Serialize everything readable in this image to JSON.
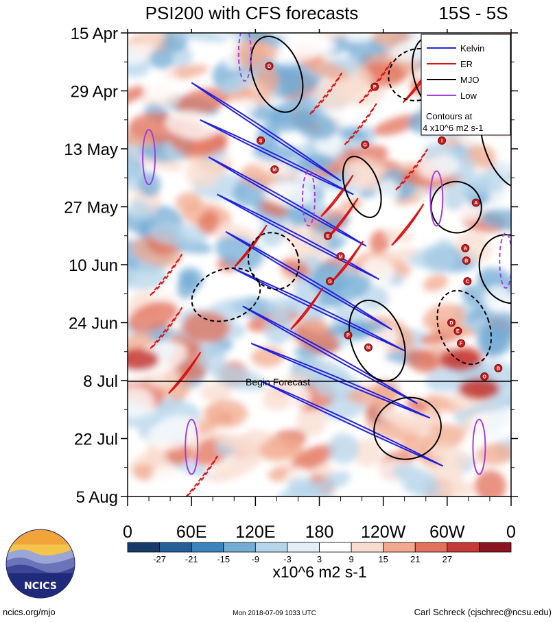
{
  "chart_data": {
    "type": "heatmap",
    "title": "PSI200 with CFS forecasts",
    "region": "15S - 5S",
    "y_tick_labels": [
      "15 Apr",
      "29 Apr",
      "13 May",
      "27 May",
      "10 Jun",
      "24 Jun",
      "8 Jul",
      "22 Jul",
      "5 Aug"
    ],
    "x_tick_labels": [
      "0",
      "60E",
      "120E",
      "180",
      "120W",
      "60W",
      "0"
    ],
    "xlim": [
      0,
      360
    ],
    "y_range": [
      "15 Apr",
      "5 Aug"
    ],
    "forecast_start": "8 Jul",
    "forecast_label": "Begin Forecast",
    "colorbar": {
      "levels": [
        "-27",
        "-21",
        "-15",
        "-9",
        "-3",
        "3",
        "9",
        "15",
        "21",
        "27"
      ],
      "colors": [
        "#163b6b",
        "#245f9a",
        "#3a84c0",
        "#74acd6",
        "#b6d4ea",
        "#e3eef7",
        "#ffffff",
        "#f8dccf",
        "#f2a98d",
        "#e2705a",
        "#c43a36",
        "#8a1420"
      ],
      "units": "x10^6 m2 s-1"
    },
    "legend": {
      "position": "top-right",
      "entries": [
        {
          "label": "Kelvin",
          "color": "#2222dd"
        },
        {
          "label": "ER",
          "color": "#dd1111"
        },
        {
          "label": "MJO",
          "color": "#000000"
        },
        {
          "label": "Low",
          "color": "#a040e0"
        }
      ],
      "note": [
        "Contours at",
        "4 x10^6 m2 s-1"
      ]
    },
    "storm_markers": [
      {
        "label": "D",
        "lon": 133,
        "date": "23 Apr"
      },
      {
        "label": "P",
        "lon": 232,
        "date": "28 Apr"
      },
      {
        "label": "S",
        "lon": 125,
        "date": "11 May"
      },
      {
        "label": "M",
        "lon": 138,
        "date": "18 May"
      },
      {
        "label": "G",
        "lon": 223,
        "date": "12 May"
      },
      {
        "label": "I",
        "lon": 295,
        "date": "11 May"
      },
      {
        "label": "A",
        "lon": 327,
        "date": "26 May"
      },
      {
        "label": "E",
        "lon": 188,
        "date": "3 Jun"
      },
      {
        "label": "M",
        "lon": 200,
        "date": "8 Jun"
      },
      {
        "label": "G",
        "lon": 190,
        "date": "14 Jun"
      },
      {
        "label": "A",
        "lon": 317,
        "date": "6 Jun"
      },
      {
        "label": "B",
        "lon": 318,
        "date": "9 Jun"
      },
      {
        "label": "C",
        "lon": 319,
        "date": "14 Jun"
      },
      {
        "label": "D",
        "lon": 304,
        "date": "24 Jun"
      },
      {
        "label": "E",
        "lon": 310,
        "date": "26 Jun"
      },
      {
        "label": "F",
        "lon": 313,
        "date": "29 Jun"
      },
      {
        "label": "P",
        "lon": 207,
        "date": "27 Jun"
      },
      {
        "label": "M",
        "lon": 226,
        "date": "30 Jun"
      },
      {
        "label": "O",
        "lon": 335,
        "date": "7 Jul"
      },
      {
        "label": "B",
        "lon": 348,
        "date": "5 Jul"
      }
    ]
  },
  "footer": {
    "left": "ncics.org/mjo",
    "center": "Mon 2018-07-09 1033 UTC",
    "right": "Carl Schreck (cjschrec@ncsu.edu)"
  },
  "logo": {
    "text": "NCICS"
  }
}
